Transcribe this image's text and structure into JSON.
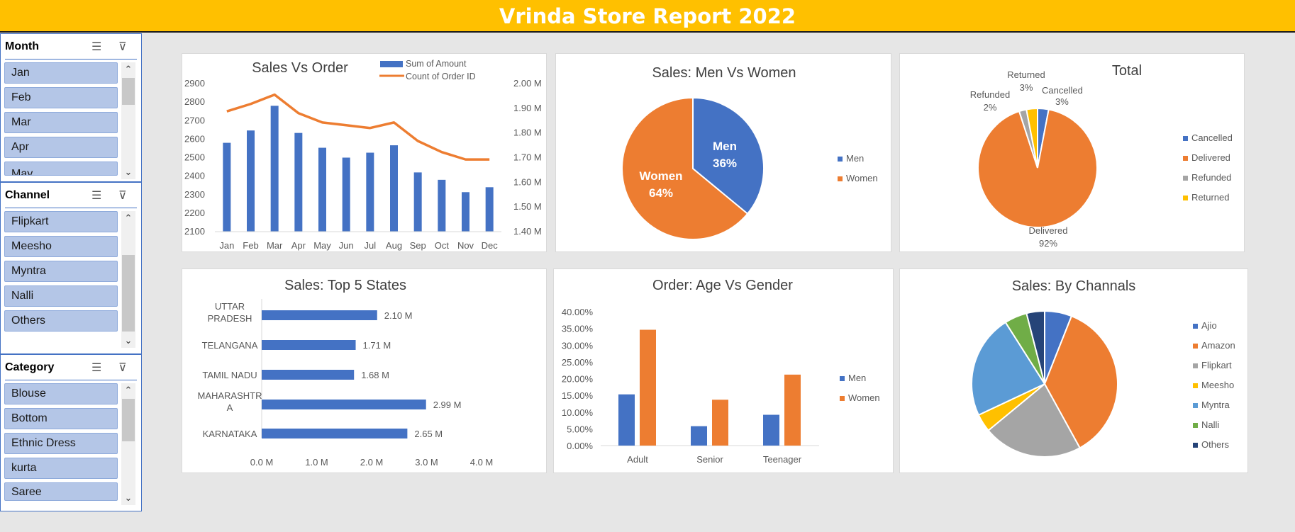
{
  "banner": {
    "title": "Vrinda Store Report 2022"
  },
  "slicers": {
    "month": {
      "title": "Month",
      "items": [
        "Jan",
        "Feb",
        "Mar",
        "Apr",
        "May"
      ]
    },
    "channel": {
      "title": "Channel",
      "items": [
        "Flipkart",
        "Meesho",
        "Myntra",
        "Nalli",
        "Others"
      ]
    },
    "category": {
      "title": "Category",
      "items": [
        "Blouse",
        "Bottom",
        "Ethnic Dress",
        "kurta",
        "Saree"
      ]
    }
  },
  "icons": {
    "multi_select": "multi-select-icon",
    "clear_filter": "clear-filter-icon"
  },
  "colors": {
    "blue": "#4472c4",
    "orange": "#ed7d31",
    "gray": "#a5a5a5",
    "yellow": "#ffc000",
    "lightblue": "#5b9bd5",
    "green": "#70ad47",
    "navy": "#264478"
  },
  "chart_data": [
    {
      "type": "bar",
      "title": "Sales Vs Order",
      "categories": [
        "Jan",
        "Feb",
        "Mar",
        "Apr",
        "May",
        "Jun",
        "Jul",
        "Aug",
        "Sep",
        "Oct",
        "Nov",
        "Dec"
      ],
      "series": [
        {
          "name": "Sum of Amount",
          "type": "bar",
          "axis": "right",
          "values": [
            1.76,
            1.81,
            1.91,
            1.8,
            1.74,
            1.7,
            1.72,
            1.75,
            1.64,
            1.61,
            1.56,
            1.58
          ]
        },
        {
          "name": "Count of Order ID",
          "type": "line",
          "axis": "left",
          "values": [
            2750,
            2790,
            2840,
            2740,
            2690,
            2675,
            2660,
            2690,
            2590,
            2530,
            2490,
            2490
          ]
        }
      ],
      "y_left_ticks": [
        "2900",
        "2800",
        "2700",
        "2600",
        "2500",
        "2400",
        "2300",
        "2200",
        "2100"
      ],
      "y_right_ticks": [
        "2.00 M",
        "1.90 M",
        "1.80 M",
        "1.70 M",
        "1.60 M",
        "1.50 M",
        "1.40 M"
      ],
      "ylim_left": [
        2100,
        2900
      ],
      "ylim_right": [
        1.4,
        2.0
      ],
      "legend": "top"
    },
    {
      "type": "pie",
      "title": "Sales: Men Vs Women",
      "labels": [
        "Men",
        "Women"
      ],
      "values": [
        36,
        64
      ],
      "data_labels": [
        "Men",
        "36%",
        "Women",
        "64%"
      ],
      "legend_labels": [
        "Men",
        "Women"
      ],
      "legend": "right"
    },
    {
      "type": "pie",
      "title": "Total",
      "labels": [
        "Cancelled",
        "Delivered",
        "Refunded",
        "Returned"
      ],
      "values": [
        3,
        92,
        2,
        3
      ],
      "data_labels": [
        "Cancelled",
        "3%",
        "Delivered",
        "92%",
        "Refunded",
        "2%",
        "Returned",
        "3%"
      ],
      "legend_labels": [
        "Cancelled",
        "Delivered",
        "Refunded",
        "Returned"
      ],
      "legend": "right"
    },
    {
      "type": "bar",
      "orientation": "horizontal",
      "title": "Sales: Top 5 States",
      "categories": [
        [
          "UTTAR",
          "PRADESH"
        ],
        [
          "TELANGANA"
        ],
        [
          "TAMIL NADU"
        ],
        [
          "MAHARASHTR",
          "A"
        ],
        [
          "KARNATAKA"
        ]
      ],
      "values": [
        2.1,
        1.71,
        1.68,
        2.99,
        2.65
      ],
      "value_labels": [
        "2.10 M",
        "1.71 M",
        "1.68 M",
        "2.99 M",
        "2.65 M"
      ],
      "x_ticks": [
        "0.0 M",
        "1.0 M",
        "2.0 M",
        "3.0 M",
        "4.0 M"
      ],
      "xlim": [
        0,
        4
      ]
    },
    {
      "type": "bar",
      "title": "Order: Age Vs Gender",
      "categories": [
        "Adult",
        "Senior",
        "Teenager"
      ],
      "series": [
        {
          "name": "Men",
          "values": [
            15.3,
            5.8,
            9.2
          ]
        },
        {
          "name": "Women",
          "values": [
            34.6,
            13.7,
            21.2
          ]
        }
      ],
      "y_ticks": [
        "40.00%",
        "35.00%",
        "30.00%",
        "25.00%",
        "20.00%",
        "15.00%",
        "10.00%",
        "5.00%",
        "0.00%"
      ],
      "ylim": [
        0,
        40
      ],
      "legend": "right"
    },
    {
      "type": "pie",
      "title": "Sales: By Channals",
      "labels": [
        "Ajio",
        "Amazon",
        "Flipkart",
        "Meesho",
        "Myntra",
        "Nalli",
        "Others"
      ],
      "values": [
        6,
        36,
        22,
        4,
        23,
        5,
        4
      ],
      "legend_labels": [
        "Ajio",
        "Amazon",
        "Flipkart",
        "Meesho",
        "Myntra",
        "Nalli",
        "Others"
      ],
      "legend": "right"
    }
  ]
}
